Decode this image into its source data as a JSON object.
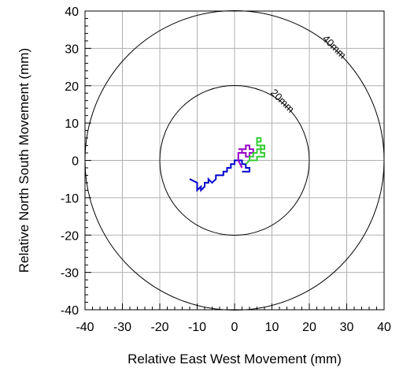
{
  "chart_data": {
    "type": "line",
    "title": "",
    "xlabel": "Relative East West Movement (mm)",
    "ylabel": "Relative North South Movement (mm)",
    "xlim": [
      -40,
      40
    ],
    "ylim": [
      -40,
      40
    ],
    "x_ticks": [
      "-40",
      "-30",
      "-20",
      "-10",
      "0",
      "10",
      "20",
      "30",
      "40"
    ],
    "y_ticks": [
      "40",
      "30",
      "20",
      "10",
      "0",
      "-10",
      "-20",
      "-30",
      "-40"
    ],
    "grid": true,
    "circles": [
      {
        "label": "20mm",
        "radius": 20
      },
      {
        "label": "40mm",
        "radius": 40
      }
    ],
    "series": [
      {
        "color": "#0000cc",
        "points": [
          [
            -12,
            -5
          ],
          [
            -10,
            -6
          ],
          [
            -10,
            -8
          ],
          [
            -9,
            -7
          ],
          [
            -9,
            -8
          ],
          [
            -8,
            -7
          ],
          [
            -8,
            -6
          ],
          [
            -7,
            -6
          ],
          [
            -7,
            -5
          ],
          [
            -6,
            -6
          ],
          [
            -5,
            -5
          ],
          [
            -5,
            -4
          ],
          [
            -4,
            -4
          ],
          [
            -3,
            -4
          ],
          [
            -3,
            -3
          ],
          [
            -2,
            -3
          ],
          [
            -2,
            -2
          ],
          [
            -1,
            -2
          ],
          [
            -1,
            -1
          ],
          [
            0,
            -1
          ],
          [
            0,
            0
          ],
          [
            1,
            0
          ],
          [
            2,
            0
          ],
          [
            2,
            -1
          ],
          [
            3,
            -1
          ],
          [
            3,
            -2
          ],
          [
            4,
            -2
          ],
          [
            4,
            -3
          ],
          [
            3,
            -3
          ],
          [
            2,
            -3
          ]
        ]
      },
      {
        "color": "#9900cc",
        "points": [
          [
            2,
            -2
          ],
          [
            1,
            0
          ],
          [
            1,
            2
          ],
          [
            2,
            2
          ],
          [
            2,
            3
          ],
          [
            3,
            3
          ],
          [
            3,
            4
          ],
          [
            4,
            4
          ],
          [
            4,
            3
          ],
          [
            5,
            3
          ],
          [
            5,
            2
          ],
          [
            4,
            2
          ],
          [
            4,
            1
          ],
          [
            3,
            1
          ],
          [
            3,
            2
          ],
          [
            2,
            2
          ],
          [
            2,
            3
          ],
          [
            1,
            3
          ]
        ]
      },
      {
        "color": "#33cc33",
        "points": [
          [
            3,
            -1
          ],
          [
            4,
            0
          ],
          [
            4,
            1
          ],
          [
            5,
            1
          ],
          [
            5,
            2
          ],
          [
            6,
            2
          ],
          [
            6,
            3
          ],
          [
            7,
            3
          ],
          [
            7,
            4
          ],
          [
            6,
            4
          ],
          [
            6,
            5
          ],
          [
            7,
            5
          ],
          [
            7,
            6
          ],
          [
            6,
            6
          ],
          [
            6,
            4
          ],
          [
            8,
            4
          ],
          [
            8,
            3
          ],
          [
            7,
            3
          ],
          [
            7,
            2
          ],
          [
            8,
            2
          ],
          [
            8,
            1
          ],
          [
            7,
            1
          ],
          [
            6,
            1
          ],
          [
            6,
            0
          ],
          [
            5,
            0
          ],
          [
            4,
            0
          ]
        ]
      }
    ]
  }
}
